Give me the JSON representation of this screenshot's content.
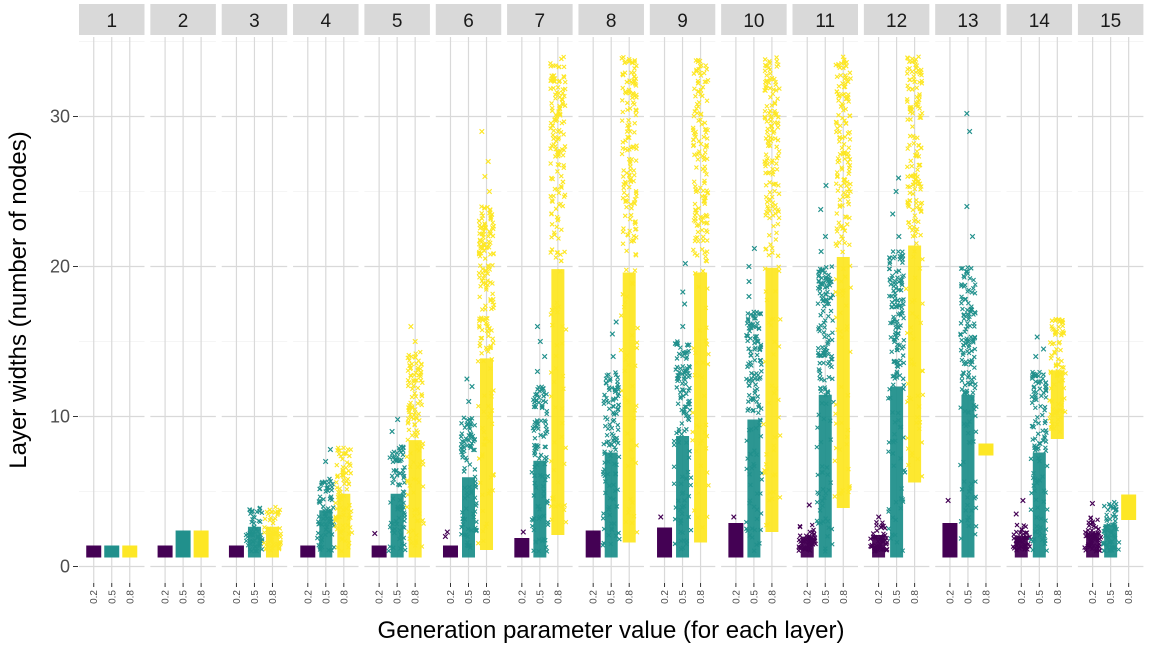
{
  "chart_data": {
    "type": "scatter",
    "title": "",
    "xlabel": "Generation parameter value (for each layer)",
    "ylabel": "Layer widths (number of nodes)",
    "ylim": [
      0,
      35
    ],
    "yticks": [
      0,
      10,
      20,
      30
    ],
    "categories": [
      "0.2",
      "0.5",
      "0.8"
    ],
    "facets": [
      "1",
      "2",
      "3",
      "4",
      "5",
      "6",
      "7",
      "8",
      "9",
      "10",
      "11",
      "12",
      "13",
      "14",
      "15"
    ],
    "legend": "none",
    "grid": true,
    "marker": "x",
    "colors": {
      "0.2": "#440154",
      "0.5": "#21908C",
      "0.8": "#FDE725"
    },
    "series": [
      {
        "facet": "1",
        "ranges": [
          [
            1,
            1
          ],
          [
            1,
            1
          ],
          [
            1,
            1
          ]
        ],
        "outliers": [
          [],
          [],
          []
        ]
      },
      {
        "facet": "2",
        "ranges": [
          [
            1,
            1
          ],
          [
            1,
            2
          ],
          [
            1,
            2
          ]
        ],
        "outliers": [
          [],
          [],
          []
        ]
      },
      {
        "facet": "3",
        "ranges": [
          [
            1,
            1
          ],
          [
            1,
            4
          ],
          [
            1,
            4
          ]
        ],
        "outliers": [
          [],
          [],
          []
        ]
      },
      {
        "facet": "4",
        "ranges": [
          [
            1,
            1
          ],
          [
            1,
            6
          ],
          [
            1,
            8
          ]
        ],
        "outliers": [
          [],
          [
            7,
            7.8
          ],
          []
        ]
      },
      {
        "facet": "5",
        "ranges": [
          [
            1,
            1
          ],
          [
            1,
            8
          ],
          [
            1,
            14.5
          ]
        ],
        "outliers": [
          [
            2.2
          ],
          [
            9,
            9.8
          ],
          [
            15,
            16
          ]
        ]
      },
      {
        "facet": "6",
        "ranges": [
          [
            1,
            1
          ],
          [
            1,
            10
          ],
          [
            1.5,
            24
          ]
        ],
        "outliers": [
          [
            2,
            2.3
          ],
          [
            11,
            12,
            12.5
          ],
          [
            25,
            26,
            27,
            29
          ]
        ]
      },
      {
        "facet": "7",
        "ranges": [
          [
            1,
            1.5
          ],
          [
            1,
            12
          ],
          [
            2.5,
            34
          ]
        ],
        "outliers": [
          [
            2.3
          ],
          [
            13,
            14,
            15,
            16
          ],
          []
        ]
      },
      {
        "facet": "8",
        "ranges": [
          [
            1,
            2
          ],
          [
            1,
            13
          ],
          [
            2,
            34
          ]
        ],
        "outliers": [
          [
            2.2
          ],
          [
            14,
            15.5,
            16.3
          ],
          []
        ]
      },
      {
        "facet": "9",
        "ranges": [
          [
            1,
            2.2
          ],
          [
            1,
            15
          ],
          [
            2,
            34
          ]
        ],
        "outliers": [
          [
            3.3
          ],
          [
            16,
            17.5,
            18.3,
            20.2
          ],
          []
        ]
      },
      {
        "facet": "10",
        "ranges": [
          [
            1,
            2.5
          ],
          [
            1,
            17
          ],
          [
            2.7,
            34
          ]
        ],
        "outliers": [
          [
            3.3
          ],
          [
            18,
            19,
            20,
            21.2
          ],
          []
        ]
      },
      {
        "facet": "11",
        "ranges": [
          [
            1,
            2.8
          ],
          [
            1,
            20
          ],
          [
            4.3,
            34
          ]
        ],
        "outliers": [
          [
            4.1
          ],
          [
            21,
            22,
            23.8,
            25.4
          ],
          []
        ]
      },
      {
        "facet": "12",
        "ranges": [
          [
            1,
            3
          ],
          [
            1,
            21
          ],
          [
            6,
            34
          ]
        ],
        "outliers": [
          [
            3.3
          ],
          [
            22,
            23.5,
            25,
            25.9
          ],
          []
        ]
      },
      {
        "facet": "13",
        "ranges": [
          [
            1,
            2.5
          ],
          [
            1,
            20
          ],
          [
            7.8,
            7.8
          ]
        ],
        "outliers": [
          [
            4.4
          ],
          [
            22,
            24,
            29,
            30.2
          ],
          []
        ]
      },
      {
        "facet": "14",
        "ranges": [
          [
            1,
            2.8
          ],
          [
            1,
            13
          ],
          [
            8.9,
            16.5
          ]
        ],
        "outliers": [
          [
            3.5,
            4.4
          ],
          [
            14,
            14.5,
            15.3
          ],
          []
        ]
      },
      {
        "facet": "15",
        "ranges": [
          [
            1,
            3.3
          ],
          [
            1,
            4.3
          ],
          [
            3.5,
            4.4
          ]
        ],
        "outliers": [
          [
            4.2
          ],
          [],
          []
        ]
      }
    ]
  }
}
